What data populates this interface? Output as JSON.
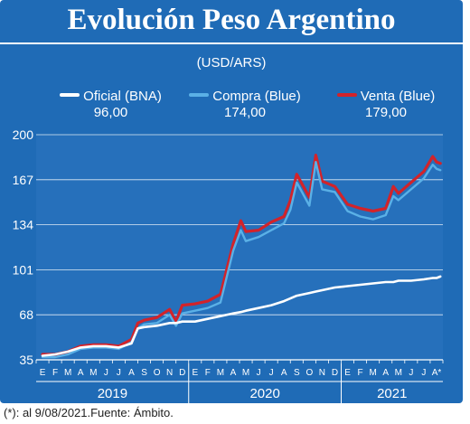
{
  "title": "Evolución Peso Argentino",
  "unit": "(USD/ARS)",
  "legend": [
    {
      "name": "Oficial (BNA)",
      "value": "96,00",
      "color": "#ffffff"
    },
    {
      "name": "Compra (Blue)",
      "value": "174,00",
      "color": "#5ab0e6"
    },
    {
      "name": "Venta (Blue)",
      "value": "179,00",
      "color": "#d2232a"
    }
  ],
  "footnote": "(*): al 9/08/2021.Fuente: Ámbito.",
  "chart_data": {
    "type": "line",
    "ylim": [
      35,
      200
    ],
    "yticks": [
      35,
      68,
      101,
      134,
      167,
      200
    ],
    "grid": true,
    "x_months": [
      "E",
      "F",
      "M",
      "A",
      "M",
      "J",
      "J",
      "A",
      "S",
      "O",
      "N",
      "D",
      "E",
      "F",
      "M",
      "A",
      "M",
      "J",
      "J",
      "A",
      "S",
      "O",
      "N",
      "D",
      "E",
      "F",
      "M",
      "A",
      "M",
      "J",
      "J",
      "A*"
    ],
    "year_labels": [
      "2019",
      "2020",
      "2021"
    ],
    "x_index": [
      0,
      1,
      2,
      3,
      4,
      5,
      6,
      7,
      7.5,
      8,
      9,
      10,
      10.5,
      11,
      12,
      13,
      14,
      15,
      15.6,
      16,
      17,
      18,
      19,
      19.5,
      20,
      21,
      21.5,
      22,
      23,
      24,
      25,
      26,
      27,
      27.6,
      28,
      29,
      30,
      30.7,
      31,
      31.3
    ],
    "series": [
      {
        "name": "Oficial (BNA)",
        "color": "#ffffff",
        "values": [
          38,
          39,
          41,
          44,
          45,
          45,
          44,
          47,
          58,
          59,
          60,
          62,
          62,
          63,
          63,
          65,
          67,
          69,
          70,
          71,
          73,
          75,
          78,
          80,
          82,
          84,
          85,
          86,
          88,
          89,
          90,
          91,
          92,
          92,
          93,
          93,
          94,
          95,
          95,
          96
        ]
      },
      {
        "name": "Compra (Blue)",
        "color": "#5ab0e6",
        "values": [
          37,
          37,
          39,
          43,
          44,
          44,
          43,
          48,
          58,
          61,
          62,
          68,
          60,
          69,
          71,
          73,
          77,
          115,
          130,
          122,
          125,
          130,
          135,
          145,
          165,
          148,
          180,
          160,
          158,
          144,
          140,
          138,
          141,
          155,
          152,
          160,
          168,
          178,
          175,
          174
        ]
      },
      {
        "name": "Venta (Blue)",
        "color": "#d2232a",
        "values": [
          39,
          39,
          41,
          45,
          46,
          46,
          45,
          50,
          62,
          64,
          66,
          72,
          63,
          75,
          76,
          78,
          83,
          120,
          137,
          129,
          130,
          136,
          140,
          152,
          171,
          154,
          185,
          166,
          162,
          149,
          146,
          144,
          146,
          162,
          157,
          165,
          173,
          184,
          180,
          179
        ]
      }
    ]
  }
}
